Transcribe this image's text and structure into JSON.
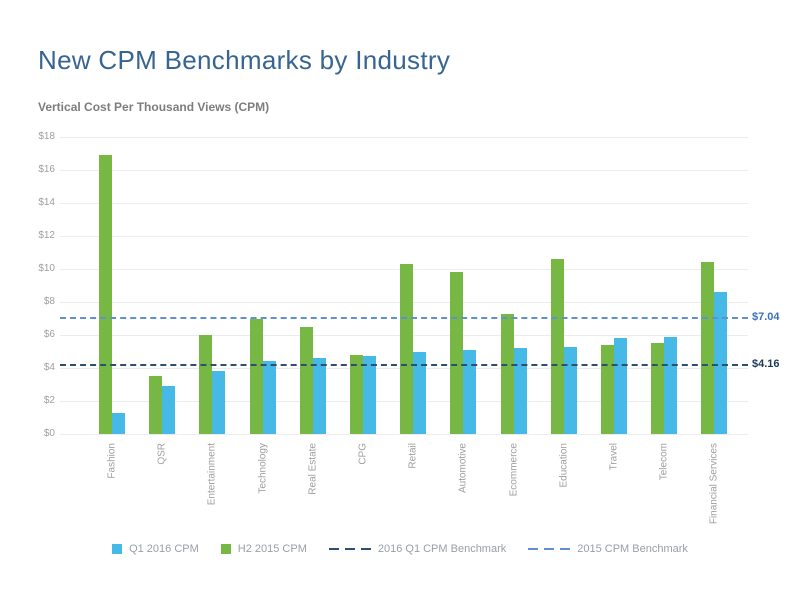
{
  "page": {
    "title": "New CPM Benchmarks by Industry",
    "subtitle": "Vertical Cost Per Thousand Views (CPM)"
  },
  "colors": {
    "title_text": "#376491",
    "subtitle_text": "#7d7d7d",
    "axis_text": "#9e9e9e",
    "gridline": "#ececec",
    "q1_2016": "#47b9e6",
    "h2_2015": "#77b744",
    "benchmark_2016_line": "#2e4f70",
    "benchmark_2015_line": "#6191cc",
    "benchmark_2016_label": "#1d3a57",
    "benchmark_2015_label": "#3a72b9",
    "legend_text": "#97a0a8"
  },
  "chart_data": {
    "type": "bar",
    "title": "New CPM Benchmarks by Industry",
    "subtitle": "Vertical Cost Per Thousand Views (CPM)",
    "categories": [
      "Fashion",
      "QSR",
      "Entertainment",
      "Technology",
      "Real Estate",
      "CPG",
      "Retail",
      "Automotive",
      "Ecommerce",
      "Education",
      "Travel",
      "Telecom",
      "Financial Services"
    ],
    "series": [
      {
        "name": "H2 2015 CPM",
        "color_key": "h2_2015",
        "values": [
          16.9,
          3.5,
          6.0,
          7.0,
          6.5,
          4.8,
          10.3,
          9.8,
          7.3,
          10.6,
          5.4,
          5.5,
          10.4
        ]
      },
      {
        "name": "Q1 2016 CPM",
        "color_key": "q1_2016",
        "values": [
          1.3,
          2.9,
          3.8,
          4.4,
          4.6,
          4.7,
          5.0,
          5.1,
          5.2,
          5.3,
          5.8,
          5.9,
          8.6
        ]
      }
    ],
    "benchmark_lines": [
      {
        "name": "2015 CPM Benchmark",
        "value": 7.04,
        "label": "$7.04",
        "line_color_key": "benchmark_2015_line",
        "label_color_key": "benchmark_2015_label"
      },
      {
        "name": "2016 Q1 CPM Benchmark",
        "value": 4.16,
        "label": "$4.16",
        "line_color_key": "benchmark_2016_line",
        "label_color_key": "benchmark_2016_label"
      }
    ],
    "ylim": [
      0,
      18
    ],
    "ytick_step": 2,
    "ytick_labels": [
      "$0",
      "$2",
      "$4",
      "$6",
      "$8",
      "$10",
      "$12",
      "$14",
      "$16",
      "$18"
    ],
    "grid": true,
    "legend_position": "bottom",
    "bar_order_note": "H2 2015 (green) drawn left of Q1 2016 (blue) in each group"
  },
  "legend": {
    "items": [
      {
        "label": "Q1 2016 CPM",
        "swatch": "square",
        "color_key": "q1_2016"
      },
      {
        "label": "H2 2015 CPM",
        "swatch": "square",
        "color_key": "h2_2015"
      },
      {
        "label": "2016 Q1 CPM Benchmark",
        "swatch": "dashes",
        "color_key": "benchmark_2016_line"
      },
      {
        "label": "2015 CPM Benchmark",
        "swatch": "dashes",
        "color_key": "benchmark_2015_line"
      }
    ]
  }
}
